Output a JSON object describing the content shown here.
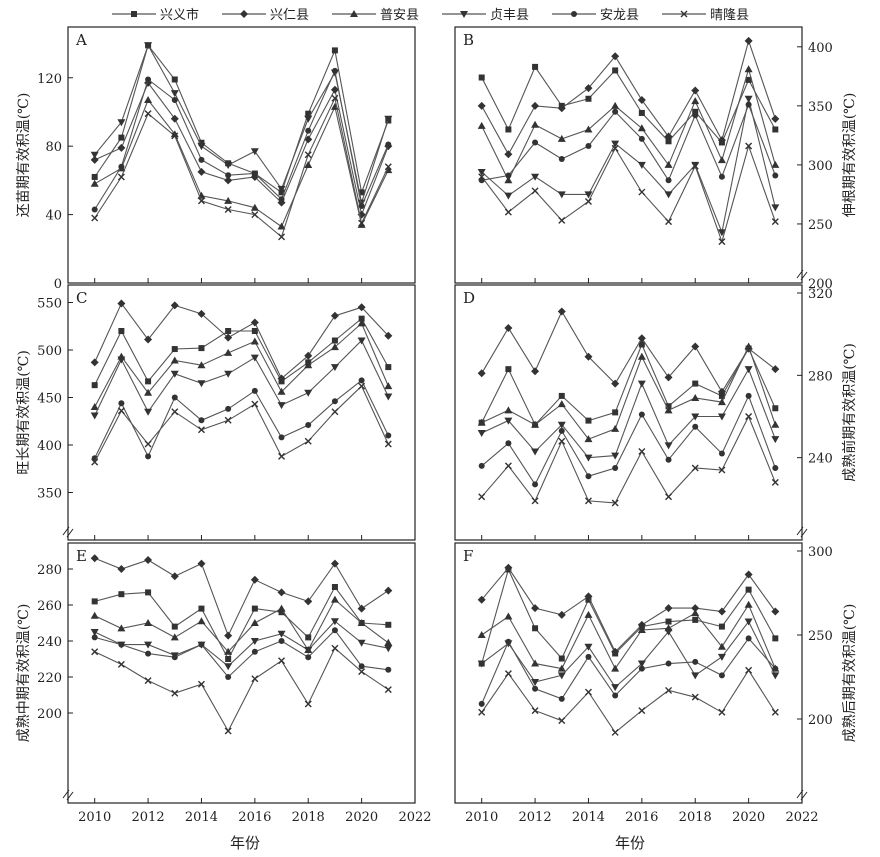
{
  "legend": [
    "兴义市",
    "兴仁县",
    "普安县",
    "贞丰县",
    "安龙县",
    "晴隆县"
  ],
  "xlabel": "年份",
  "x_ticks": [
    2010,
    2012,
    2014,
    2016,
    2018,
    2020,
    2022
  ],
  "years": [
    2010,
    2011,
    2012,
    2013,
    2014,
    2015,
    2016,
    2017,
    2018,
    2019,
    2020,
    2021
  ],
  "line_color": "#555555",
  "marker_color": "#333333",
  "chart_data": [
    {
      "type": "line",
      "panel": "A",
      "ylabel": "还苗期有效积温(℃)",
      "y_side": "left",
      "ylim": [
        0,
        145
      ],
      "y_ticks": [
        0,
        40,
        80,
        120
      ],
      "series": [
        {
          "values": [
            62,
            85,
            139,
            119,
            82,
            70,
            64,
            53,
            99,
            136,
            53,
            95
          ]
        },
        {
          "values": [
            72,
            79,
            117,
            96,
            65,
            60,
            62,
            47,
            84,
            113,
            40,
            80
          ]
        },
        {
          "values": [
            58,
            67,
            107,
            87,
            51,
            48,
            44,
            33,
            69,
            103,
            34,
            66
          ]
        },
        {
          "values": [
            75,
            94,
            139,
            111,
            80,
            69,
            77,
            55,
            96,
            123,
            47,
            96
          ]
        },
        {
          "values": [
            43,
            68,
            119,
            107,
            72,
            63,
            64,
            49,
            89,
            124,
            45,
            81
          ]
        },
        {
          "values": [
            38,
            62,
            99,
            86,
            48,
            43,
            40,
            27,
            75,
            108,
            35,
            68
          ]
        }
      ]
    },
    {
      "type": "line",
      "panel": "B",
      "ylabel": "伸根期有效积温(℃)",
      "y_side": "right",
      "ylim": [
        200,
        410
      ],
      "y_ticks": [
        200,
        250,
        300,
        350,
        400
      ],
      "axis_break": true,
      "series": [
        {
          "values": [
            374,
            330,
            383,
            350,
            356,
            380,
            344,
            320,
            345,
            319,
            372,
            330
          ]
        },
        {
          "values": [
            350,
            309,
            350,
            348,
            365,
            392,
            355,
            324,
            363,
            321,
            405,
            339
          ]
        },
        {
          "values": [
            333,
            287,
            334,
            322,
            330,
            350,
            331,
            300,
            354,
            304,
            381,
            300
          ]
        },
        {
          "values": [
            294,
            274,
            290,
            275,
            275,
            318,
            300,
            275,
            300,
            243,
            356,
            264
          ]
        },
        {
          "values": [
            287,
            291,
            319,
            305,
            316,
            345,
            322,
            287,
            342,
            290,
            351,
            291
          ]
        },
        {
          "values": [
            290,
            260,
            278,
            253,
            269,
            314,
            277,
            252,
            299,
            235,
            316,
            252
          ]
        }
      ]
    },
    {
      "type": "line",
      "panel": "C",
      "ylabel": "旺长期有效积温(℃)",
      "y_side": "left",
      "ylim": [
        300,
        560
      ],
      "y_ticks": [
        350,
        400,
        450,
        500,
        550
      ],
      "axis_break": true,
      "series": [
        {
          "values": [
            463,
            520,
            467,
            501,
            502,
            520,
            520,
            467,
            487,
            510,
            533,
            482
          ]
        },
        {
          "values": [
            487,
            549,
            511,
            547,
            538,
            513,
            529,
            470,
            494,
            536,
            545,
            515
          ]
        },
        {
          "values": [
            440,
            493,
            455,
            489,
            484,
            497,
            509,
            456,
            484,
            503,
            528,
            462
          ]
        },
        {
          "values": [
            431,
            490,
            435,
            475,
            465,
            475,
            492,
            442,
            455,
            482,
            510,
            451
          ]
        },
        {
          "values": [
            386,
            444,
            388,
            450,
            426,
            438,
            457,
            408,
            421,
            446,
            468,
            410
          ]
        },
        {
          "values": [
            382,
            436,
            401,
            435,
            416,
            426,
            443,
            388,
            404,
            435,
            462,
            401
          ]
        }
      ]
    },
    {
      "type": "line",
      "panel": "D",
      "ylabel": "成熟前期有效积温(℃)",
      "y_side": "right",
      "ylim": [
        200,
        320
      ],
      "y_ticks": [
        240,
        280,
        320
      ],
      "axis_break": true,
      "series": [
        {
          "values": [
            257,
            283,
            256,
            270,
            258,
            262,
            295,
            265,
            276,
            270,
            293,
            264
          ]
        },
        {
          "values": [
            281,
            303,
            282,
            311,
            289,
            276,
            298,
            279,
            294,
            272,
            293,
            283
          ]
        },
        {
          "values": [
            257,
            263,
            256,
            266,
            249,
            254,
            289,
            263,
            269,
            267,
            294,
            256
          ]
        },
        {
          "values": [
            252,
            258,
            243,
            256,
            240,
            241,
            276,
            246,
            260,
            260,
            283,
            249
          ]
        },
        {
          "values": [
            236,
            247,
            227,
            253,
            231,
            235,
            261,
            239,
            255,
            242,
            270,
            235
          ]
        },
        {
          "values": [
            221,
            236,
            219,
            248,
            219,
            218,
            243,
            221,
            235,
            234,
            260,
            228
          ]
        }
      ]
    },
    {
      "type": "line",
      "panel": "E",
      "ylabel": "成熟中期有效积温(℃)",
      "y_side": "left",
      "ylim": [
        150,
        290
      ],
      "y_ticks": [
        200,
        220,
        240,
        260,
        280
      ],
      "axis_break": true,
      "series": [
        {
          "values": [
            262,
            266,
            267,
            248,
            258,
            230,
            258,
            256,
            242,
            270,
            250,
            249
          ]
        },
        {
          "values": [
            286,
            280,
            285,
            276,
            283,
            243,
            274,
            267,
            262,
            283,
            258,
            268
          ]
        },
        {
          "values": [
            254,
            247,
            250,
            242,
            251,
            234,
            250,
            258,
            235,
            263,
            250,
            239
          ]
        },
        {
          "values": [
            245,
            238,
            238,
            232,
            238,
            226,
            240,
            244,
            235,
            251,
            239,
            236
          ]
        },
        {
          "values": [
            242,
            238,
            233,
            231,
            238,
            220,
            234,
            240,
            231,
            246,
            226,
            224
          ]
        },
        {
          "values": [
            234,
            227,
            218,
            211,
            216,
            190,
            219,
            229,
            205,
            236,
            223,
            213
          ]
        }
      ]
    },
    {
      "type": "line",
      "panel": "F",
      "ylabel": "成熟后期有效积温(℃)",
      "y_side": "right",
      "ylim": [
        150,
        300
      ],
      "y_ticks": [
        200,
        250,
        300
      ],
      "axis_break": true,
      "series": [
        {
          "values": [
            233,
            289,
            254,
            236,
            271,
            239,
            255,
            258,
            259,
            255,
            277,
            248
          ]
        },
        {
          "values": [
            271,
            290,
            266,
            262,
            273,
            240,
            256,
            266,
            266,
            264,
            286,
            264
          ]
        },
        {
          "values": [
            250,
            261,
            233,
            230,
            262,
            230,
            253,
            254,
            263,
            243,
            268,
            230
          ]
        },
        {
          "values": [
            233,
            245,
            222,
            226,
            243,
            219,
            233,
            252,
            226,
            237,
            258,
            226
          ]
        },
        {
          "values": [
            209,
            246,
            218,
            212,
            237,
            214,
            230,
            233,
            234,
            226,
            248,
            230
          ]
        },
        {
          "values": [
            204,
            227,
            205,
            199,
            216,
            192,
            205,
            217,
            213,
            204,
            229,
            204
          ]
        }
      ]
    }
  ]
}
